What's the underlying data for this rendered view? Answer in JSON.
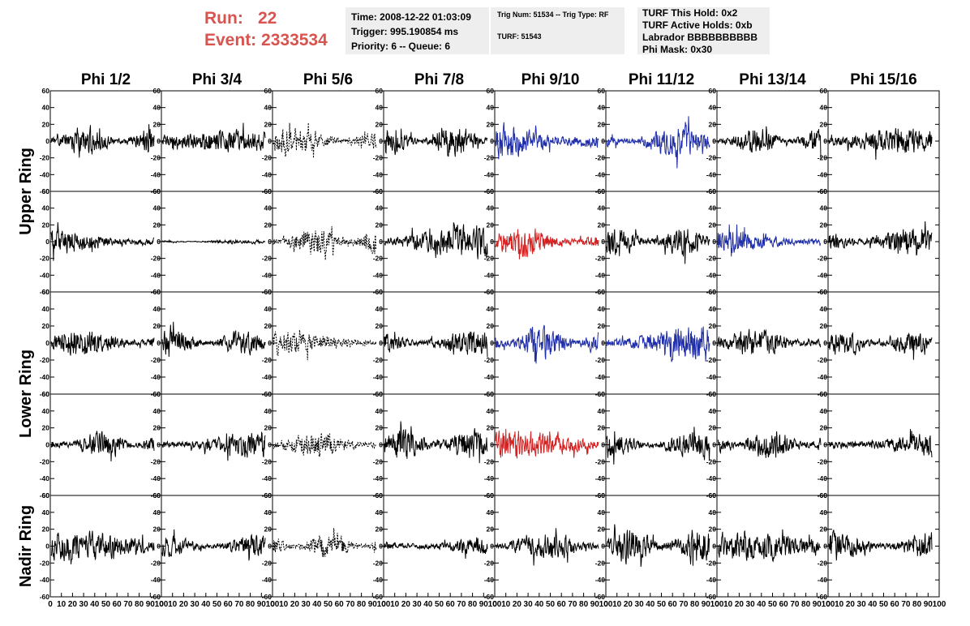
{
  "run": {
    "run_label": "Run:",
    "run_value": "22",
    "event_label": "Event:",
    "event_value": "2333534"
  },
  "header": {
    "time": "Time: 2008-12-22 01:03:09",
    "trigger": "Trigger: 995.190854 ms",
    "priority": "Priority: 6 -- Queue: 6",
    "trig_num": "Trig Num: 51534 -- Trig Type: RF",
    "turf": "TURF: 51543",
    "turf_hold": "TURF This Hold: 0x2",
    "turf_active": "TURF Active Holds: 0xb",
    "labrador": "Labrador BBBBBBBBBB",
    "phi_mask": "Phi Mask: 0x30"
  },
  "colors": {
    "normal": "#000000",
    "blue": "#1f2ea8",
    "red": "#d42020"
  },
  "chart_data": {
    "type": "line",
    "title": "",
    "columns": [
      "Phi 1/2",
      "Phi 3/4",
      "Phi 5/6",
      "Phi 7/8",
      "Phi 9/10",
      "Phi 11/12",
      "Phi 13/14",
      "Phi 15/16"
    ],
    "ring_labels": [
      "Upper Ring",
      "Lower Ring",
      "Nadir Ring"
    ],
    "rows_per_ring": [
      2,
      2,
      1
    ],
    "xlim": [
      0,
      100
    ],
    "ylim": [
      -60,
      60
    ],
    "x_ticks": [
      "0",
      "10",
      "20",
      "30",
      "40",
      "50",
      "60",
      "70",
      "80",
      "90",
      "100"
    ],
    "y_ticks": [
      "60",
      "40",
      "20",
      "0",
      "-20",
      "-40",
      "-60"
    ],
    "samples_per_trace": 260,
    "grid": false,
    "panels": [
      [
        {
          "color": "normal",
          "amp": 14,
          "dash": false,
          "seed": 11
        },
        {
          "color": "normal",
          "amp": 11,
          "dash": false,
          "seed": 12
        },
        {
          "color": "normal",
          "amp": 14,
          "dash": true,
          "seed": 13
        },
        {
          "color": "normal",
          "amp": 14,
          "dash": false,
          "seed": 14
        },
        {
          "color": "blue",
          "amp": 22,
          "dash": false,
          "seed": 15
        },
        {
          "color": "blue",
          "amp": 14,
          "dash": false,
          "seed": 16
        },
        {
          "color": "normal",
          "amp": 13,
          "dash": false,
          "seed": 17
        },
        {
          "color": "normal",
          "amp": 12,
          "dash": false,
          "seed": 18
        }
      ],
      [
        {
          "color": "normal",
          "amp": 14,
          "dash": false,
          "seed": 21
        },
        {
          "color": "normal",
          "amp": 2,
          "dash": false,
          "seed": 22
        },
        {
          "color": "normal",
          "amp": 14,
          "dash": true,
          "seed": 23
        },
        {
          "color": "normal",
          "amp": 15,
          "dash": false,
          "seed": 24
        },
        {
          "color": "red",
          "amp": 14,
          "dash": false,
          "seed": 25
        },
        {
          "color": "normal",
          "amp": 14,
          "dash": false,
          "seed": 26
        },
        {
          "color": "blue",
          "amp": 12,
          "dash": false,
          "seed": 27
        },
        {
          "color": "normal",
          "amp": 14,
          "dash": false,
          "seed": 28
        }
      ],
      [
        {
          "color": "normal",
          "amp": 13,
          "dash": false,
          "seed": 31
        },
        {
          "color": "normal",
          "amp": 12,
          "dash": false,
          "seed": 32
        },
        {
          "color": "normal",
          "amp": 11,
          "dash": true,
          "seed": 33
        },
        {
          "color": "normal",
          "amp": 12,
          "dash": false,
          "seed": 34
        },
        {
          "color": "blue",
          "amp": 16,
          "dash": false,
          "seed": 35
        },
        {
          "color": "blue",
          "amp": 18,
          "dash": false,
          "seed": 36
        },
        {
          "color": "normal",
          "amp": 13,
          "dash": false,
          "seed": 37
        },
        {
          "color": "normal",
          "amp": 11,
          "dash": false,
          "seed": 38
        }
      ],
      [
        {
          "color": "normal",
          "amp": 12,
          "dash": false,
          "seed": 41
        },
        {
          "color": "normal",
          "amp": 14,
          "dash": false,
          "seed": 42
        },
        {
          "color": "normal",
          "amp": 11,
          "dash": true,
          "seed": 43
        },
        {
          "color": "normal",
          "amp": 15,
          "dash": false,
          "seed": 44
        },
        {
          "color": "red",
          "amp": 14,
          "dash": false,
          "seed": 45
        },
        {
          "color": "normal",
          "amp": 14,
          "dash": false,
          "seed": 46
        },
        {
          "color": "normal",
          "amp": 14,
          "dash": false,
          "seed": 47
        },
        {
          "color": "normal",
          "amp": 14,
          "dash": false,
          "seed": 48
        }
      ],
      [
        {
          "color": "normal",
          "amp": 14,
          "dash": false,
          "seed": 51
        },
        {
          "color": "normal",
          "amp": 11,
          "dash": false,
          "seed": 52
        },
        {
          "color": "normal",
          "amp": 11,
          "dash": true,
          "seed": 53
        },
        {
          "color": "normal",
          "amp": 12,
          "dash": false,
          "seed": 54
        },
        {
          "color": "normal",
          "amp": 13,
          "dash": false,
          "seed": 55
        },
        {
          "color": "normal",
          "amp": 17,
          "dash": false,
          "seed": 56
        },
        {
          "color": "normal",
          "amp": 13,
          "dash": false,
          "seed": 57
        },
        {
          "color": "normal",
          "amp": 13,
          "dash": false,
          "seed": 58
        }
      ]
    ]
  }
}
